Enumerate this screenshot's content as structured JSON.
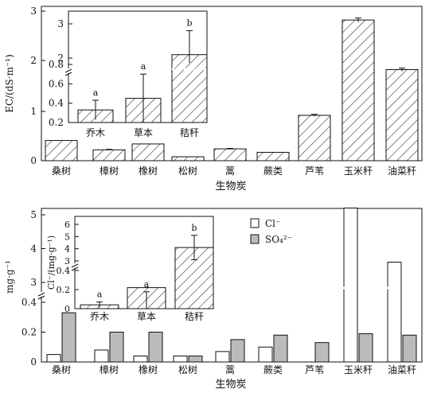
{
  "chart_data": [
    {
      "type": "bar",
      "panel": "top",
      "xlabel": "生物炭",
      "ylabel": "EC/(dS·m⁻¹)",
      "ylim": [
        0,
        3
      ],
      "axis_break": {
        "from": 0.5,
        "to": 1.8,
        "mark": "at about 0.75"
      },
      "yticks": [
        "0",
        "1",
        "2",
        "3"
      ],
      "categories": [
        "桑树",
        "樟树",
        "橡树",
        "松树",
        "蒿",
        "蕨类",
        "芦苇",
        "玉米秆",
        "油菜秆"
      ],
      "series": [
        {
          "pattern": "hatch",
          "values": [
            0.41,
            0.22,
            0.34,
            0.08,
            0.24,
            0.17,
            0.92,
            2.82,
            1.82
          ],
          "errors": [
            0,
            0.01,
            0,
            0,
            0.01,
            0,
            0.02,
            0.04,
            0.03
          ]
        }
      ],
      "inset": {
        "categories": [
          "乔木",
          "草本",
          "秸秆"
        ],
        "ylim": [
          0.2,
          3
        ],
        "yticks": [
          "0.2",
          "0.4",
          "0.6",
          "0.8",
          "2",
          "3"
        ],
        "axis_break_at": "between 0.8 and 2",
        "values": [
          0.33,
          0.45,
          2.1
        ],
        "errors": [
          0.1,
          0.25,
          0.7
        ],
        "letters": [
          "a",
          "a",
          "b"
        ]
      }
    },
    {
      "type": "bar",
      "panel": "bottom",
      "xlabel": "生物炭",
      "ylabel": "mg·g⁻¹",
      "yticks": [
        "0",
        "0.2",
        "0.4",
        "3",
        "4",
        "5"
      ],
      "axis_break_at": "between 0.4 and 3",
      "categories": [
        "桑树",
        "樟树",
        "橡树",
        "松树",
        "蒿",
        "蕨类",
        "芦苇",
        "玉米秆",
        "油菜秆"
      ],
      "legend": {
        "position": "top-center",
        "entries": [
          "Cl⁻",
          "SO₄²⁻"
        ]
      },
      "series": [
        {
          "name": "Cl⁻",
          "fill": "#ffffff",
          "values": [
            0.05,
            0.08,
            0.04,
            0.04,
            0.07,
            0.1,
            0.52,
            5.2,
            3.6
          ]
        },
        {
          "name": "SO₄²⁻",
          "fill": "#bbbbbb",
          "values": [
            0.33,
            0.2,
            0.2,
            0.04,
            0.15,
            0.18,
            0.13,
            0.19,
            0.18
          ]
        }
      ],
      "inset": {
        "ylabel": "Cl⁻/(mg·g⁻¹)",
        "categories": [
          "乔木",
          "草本",
          "秸秆"
        ],
        "yticks": [
          "0",
          "0.2",
          "0.4",
          "3",
          "4",
          "5",
          "6"
        ],
        "axis_break_at": "between 0.4 and 3",
        "values": [
          0.04,
          0.22,
          4.1
        ],
        "errors": [
          0.03,
          0.25,
          1.0
        ],
        "letters": [
          "a",
          "a",
          "b"
        ]
      }
    }
  ],
  "labels": {
    "top_xlabel": "生物炭",
    "bottom_xlabel": "生物炭",
    "top_ylabel": "EC/(dS·m⁻¹)",
    "bottom_ylabel": "mg·g⁻¹",
    "bottom_inset_ylabel": "Cl⁻/(mg·g⁻¹)",
    "legend_cl": "Cl⁻",
    "legend_so4": "SO₄²⁻"
  }
}
